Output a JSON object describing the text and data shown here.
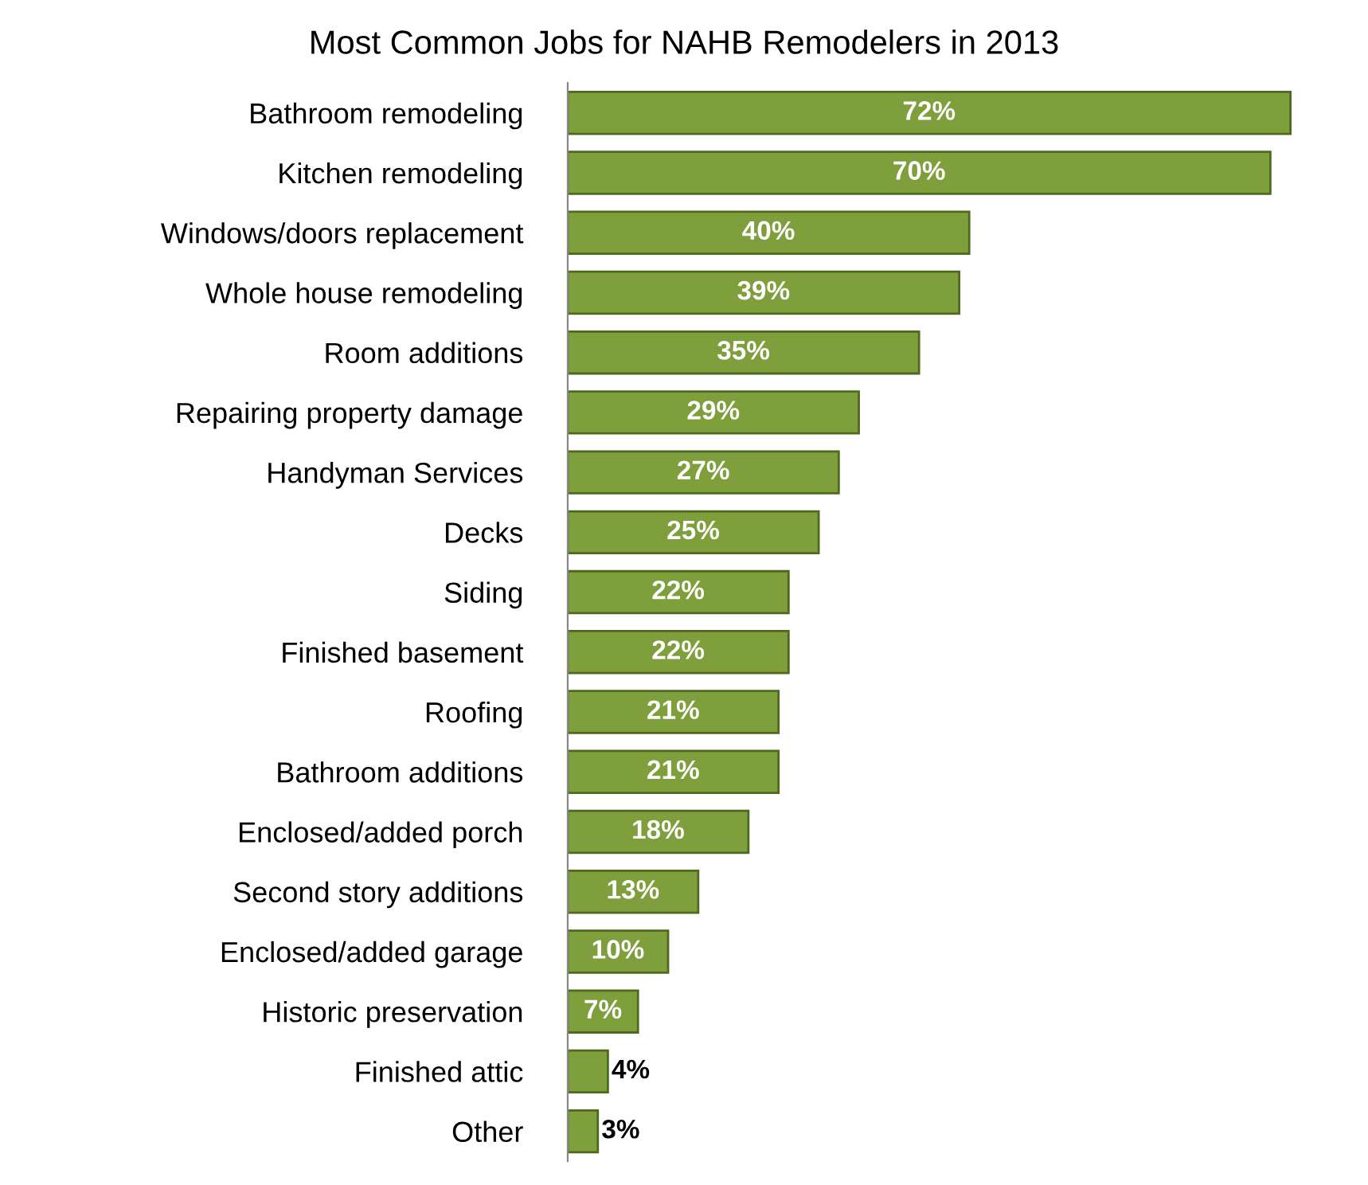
{
  "chart_data": {
    "type": "bar",
    "orientation": "horizontal",
    "title": "Most Common Jobs for NAHB Remodelers in 2013",
    "categories": [
      "Bathroom remodeling",
      "Kitchen remodeling",
      "Windows/doors replacement",
      "Whole house remodeling",
      "Room additions",
      "Repairing property damage",
      "Handyman Services",
      "Decks",
      "Siding",
      "Finished basement",
      "Roofing",
      "Bathroom additions",
      "Enclosed/added porch",
      "Second story additions",
      "Enclosed/added garage",
      "Historic preservation",
      "Finished attic",
      "Other"
    ],
    "values": [
      72,
      70,
      40,
      39,
      35,
      29,
      27,
      25,
      22,
      22,
      21,
      21,
      18,
      13,
      10,
      7,
      4,
      3
    ],
    "value_labels": [
      "72%",
      "70%",
      "40%",
      "39%",
      "35%",
      "29%",
      "27%",
      "25%",
      "22%",
      "22%",
      "21%",
      "21%",
      "18%",
      "13%",
      "10%",
      "7%",
      "4%",
      "3%"
    ],
    "color": "#7f9f3c",
    "grid": false,
    "legend": false
  }
}
